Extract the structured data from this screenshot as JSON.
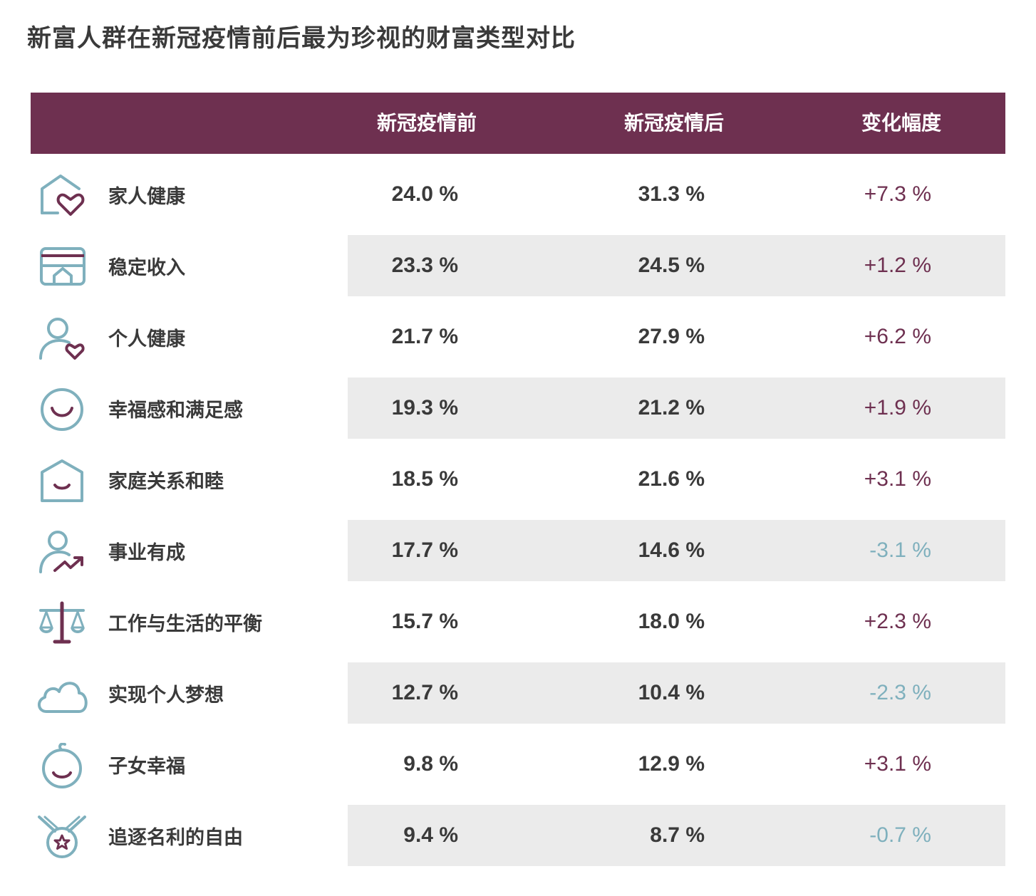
{
  "title": "新富人群在新冠疫情前后最为珍视的财富类型对比",
  "colors": {
    "header_bg": "#6e3050",
    "stripe_bg": "#ebebeb",
    "positive": "#6e3050",
    "negative": "#7fb0bd",
    "icon_teal": "#7fb0bd",
    "icon_accent": "#6e3050"
  },
  "header": {
    "col_category": "",
    "col_before": "新冠疫情前",
    "col_after": "新冠疫情后",
    "col_change": "变化幅度"
  },
  "chart_data": {
    "type": "table",
    "title": "新富人群在新冠疫情前后最为珍视的财富类型对比",
    "columns": [
      "",
      "新冠疫情前",
      "新冠疫情后",
      "变化幅度"
    ],
    "rows": [
      {
        "icon": "house-heart-icon",
        "label": "家人健康",
        "before": "24.0 %",
        "after": "31.3 %",
        "change": "+7.3 %",
        "change_value": 7.3
      },
      {
        "icon": "stable-income-icon",
        "label": "稳定收入",
        "before": "23.3 %",
        "after": "24.5 %",
        "change": "+1.2 %",
        "change_value": 1.2
      },
      {
        "icon": "person-heart-icon",
        "label": "个人健康",
        "before": "21.7 %",
        "after": "27.9 %",
        "change": "+6.2 %",
        "change_value": 6.2
      },
      {
        "icon": "smiley-icon",
        "label": "幸福感和满足感",
        "before": "19.3 %",
        "after": "21.2 %",
        "change": "+1.9 %",
        "change_value": 1.9
      },
      {
        "icon": "house-smile-icon",
        "label": "家庭关系和睦",
        "before": "18.5 %",
        "after": "21.6 %",
        "change": "+3.1 %",
        "change_value": 3.1
      },
      {
        "icon": "person-growth-icon",
        "label": "事业有成",
        "before": "17.7 %",
        "after": "14.6 %",
        "change": "-3.1 %",
        "change_value": -3.1
      },
      {
        "icon": "balance-scale-icon",
        "label": "工作与生活的平衡",
        "before": "15.7 %",
        "after": "18.0 %",
        "change": "+2.3 %",
        "change_value": 2.3
      },
      {
        "icon": "cloud-icon",
        "label": "实现个人梦想",
        "before": "12.7 %",
        "after": "10.4 %",
        "change": "-2.3 %",
        "change_value": -2.3
      },
      {
        "icon": "baby-face-icon",
        "label": "子女幸福",
        "before": "9.8 %",
        "after": "12.9 %",
        "change": "+3.1 %",
        "change_value": 3.1
      },
      {
        "icon": "star-medal-icon",
        "label": "追逐名利的自由",
        "before": "9.4 %",
        "after": "8.7 %",
        "change": "-0.7 %",
        "change_value": -0.7
      }
    ]
  }
}
